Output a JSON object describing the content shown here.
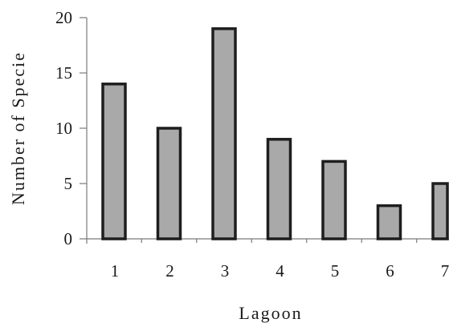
{
  "chart_data": {
    "type": "bar",
    "categories": [
      "1",
      "2",
      "3",
      "4",
      "5",
      "6",
      "7"
    ],
    "values": [
      14,
      10,
      19,
      9,
      7,
      3,
      5
    ],
    "title": "",
    "xlabel": "Lagoon",
    "ylabel": "Number of Specie",
    "ylim": [
      0,
      20
    ],
    "yticks": [
      "0",
      "5",
      "10",
      "15",
      "20"
    ],
    "grid": false,
    "legend": "none",
    "colors": {
      "bar_fill": "#a9a9a9",
      "bar_stroke": "#1e1e1e",
      "axis": "#7a7a7a",
      "text": "#1a1a1a"
    }
  }
}
